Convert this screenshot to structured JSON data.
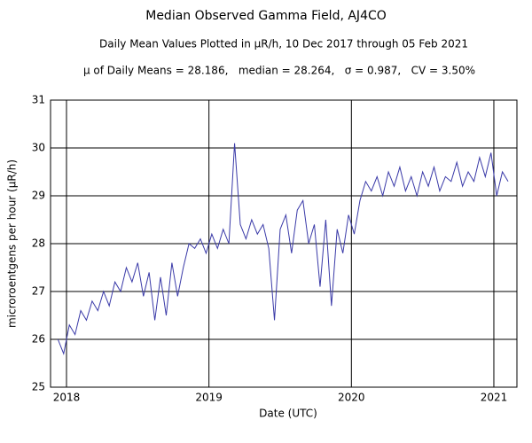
{
  "chart_data": {
    "type": "line",
    "title": "Median Observed Gamma Field, AJ4CO",
    "subtitle": "Daily Mean Values Plotted in μR/h, 10 Dec 2017 through 05 Feb 2021",
    "annotation": "μ of Daily Means = 28.186,   median = 28.264,   σ = 0.987,   CV = 3.50%",
    "x_label": "Date (UTC)",
    "y_label": "microroentgens per hour (μR/h)",
    "x": [
      2017.94,
      2017.98,
      2018.02,
      2018.06,
      2018.1,
      2018.14,
      2018.18,
      2018.22,
      2018.26,
      2018.3,
      2018.34,
      2018.38,
      2018.42,
      2018.46,
      2018.5,
      2018.54,
      2018.58,
      2018.62,
      2018.66,
      2018.7,
      2018.74,
      2018.78,
      2018.82,
      2018.86,
      2018.9,
      2018.94,
      2018.98,
      2019.02,
      2019.06,
      2019.1,
      2019.14,
      2019.18,
      2019.22,
      2019.26,
      2019.3,
      2019.34,
      2019.38,
      2019.42,
      2019.46,
      2019.5,
      2019.54,
      2019.58,
      2019.62,
      2019.66,
      2019.7,
      2019.74,
      2019.78,
      2019.82,
      2019.86,
      2019.9,
      2019.94,
      2019.98,
      2020.02,
      2020.06,
      2020.1,
      2020.14,
      2020.18,
      2020.22,
      2020.26,
      2020.3,
      2020.34,
      2020.38,
      2020.42,
      2020.46,
      2020.5,
      2020.54,
      2020.58,
      2020.62,
      2020.66,
      2020.7,
      2020.74,
      2020.78,
      2020.82,
      2020.86,
      2020.9,
      2020.94,
      2020.98,
      2021.02,
      2021.06,
      2021.1
    ],
    "series": [
      {
        "name": "Daily mean",
        "color": "#3a3aa8",
        "values": [
          26.0,
          25.7,
          26.3,
          26.1,
          26.6,
          26.4,
          26.8,
          26.6,
          27.0,
          26.7,
          27.2,
          27.0,
          27.5,
          27.2,
          27.6,
          26.9,
          27.4,
          26.4,
          27.3,
          26.5,
          27.6,
          26.9,
          27.5,
          28.0,
          27.9,
          28.1,
          27.8,
          28.2,
          27.9,
          28.3,
          28.0,
          30.1,
          28.4,
          28.1,
          28.5,
          28.2,
          28.4,
          27.9,
          26.4,
          28.3,
          28.6,
          27.8,
          28.7,
          28.9,
          28.0,
          28.4,
          27.1,
          28.5,
          26.7,
          28.3,
          27.8,
          28.6,
          28.2,
          28.9,
          29.3,
          29.1,
          29.4,
          29.0,
          29.5,
          29.2,
          29.6,
          29.1,
          29.4,
          29.0,
          29.5,
          29.2,
          29.6,
          29.1,
          29.4,
          29.3,
          29.7,
          29.2,
          29.5,
          29.3,
          29.8,
          29.4,
          29.9,
          29.0,
          29.5,
          29.3
        ]
      }
    ],
    "xlim": [
      2017.888,
      2021.162
    ],
    "xticks": [
      2018,
      2019,
      2020,
      2021
    ],
    "ylim": [
      25,
      31
    ],
    "yticks": [
      25,
      26,
      27,
      28,
      29,
      30,
      31
    ],
    "grid": true
  }
}
